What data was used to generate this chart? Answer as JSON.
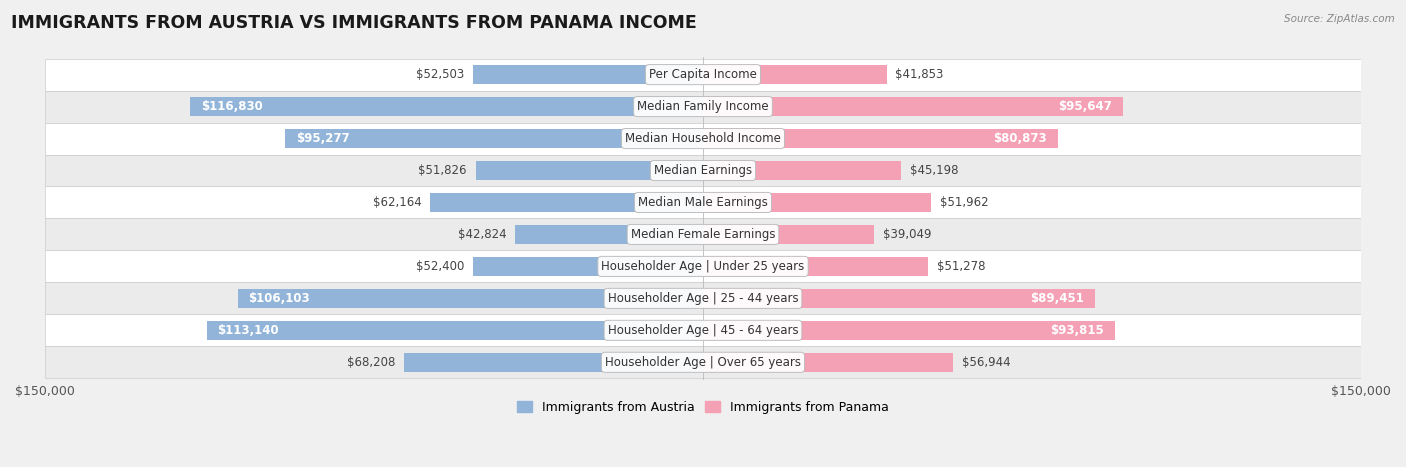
{
  "title": "IMMIGRANTS FROM AUSTRIA VS IMMIGRANTS FROM PANAMA INCOME",
  "source": "Source: ZipAtlas.com",
  "categories": [
    "Per Capita Income",
    "Median Family Income",
    "Median Household Income",
    "Median Earnings",
    "Median Male Earnings",
    "Median Female Earnings",
    "Householder Age | Under 25 years",
    "Householder Age | 25 - 44 years",
    "Householder Age | 45 - 64 years",
    "Householder Age | Over 65 years"
  ],
  "austria_values": [
    52503,
    116830,
    95277,
    51826,
    62164,
    42824,
    52400,
    106103,
    113140,
    68208
  ],
  "panama_values": [
    41853,
    95647,
    80873,
    45198,
    51962,
    39049,
    51278,
    89451,
    93815,
    56944
  ],
  "austria_color": "#92b4d9",
  "panama_color": "#f4a0b5",
  "austria_label": "Immigrants from Austria",
  "panama_label": "Immigrants from Panama",
  "max_value": 150000,
  "background_color": "#f0f0f0",
  "bar_height": 0.58,
  "label_fontsize": 8.5,
  "title_fontsize": 12.5,
  "axis_label_fontsize": 9,
  "inside_threshold": 70000
}
